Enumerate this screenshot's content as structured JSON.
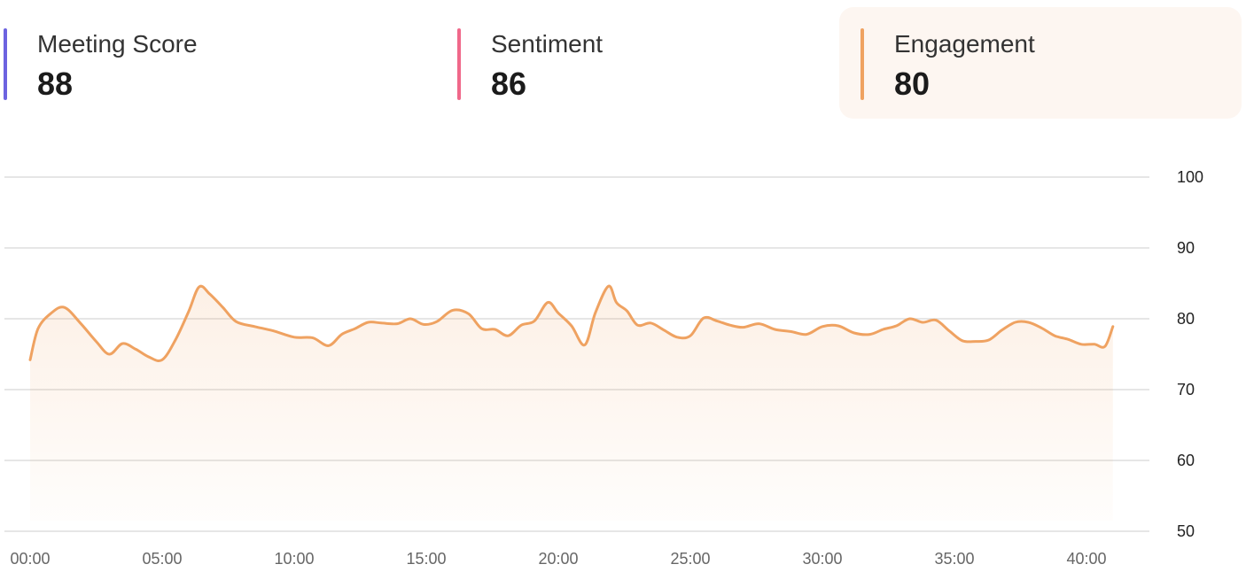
{
  "metrics": [
    {
      "label": "Meeting Score",
      "value": "88",
      "color": "#6c63e0",
      "active": false
    },
    {
      "label": "Sentiment",
      "value": "86",
      "color": "#f0688a",
      "active": false
    },
    {
      "label": "Engagement",
      "value": "80",
      "color": "#efa261",
      "active": true
    }
  ],
  "active_card_bg": "#fdf6f1",
  "chart_data": {
    "type": "area",
    "series": [
      {
        "x_minutes": [
          0.0,
          0.3,
          0.8,
          1.3,
          1.9,
          2.5,
          3.0,
          3.5,
          4.0,
          4.5,
          5.0,
          5.5,
          6.0,
          6.4,
          6.8,
          7.3,
          7.8,
          8.5,
          9.2,
          10.0,
          10.7,
          11.3,
          11.8,
          12.3,
          12.8,
          13.3,
          13.9,
          14.4,
          14.9,
          15.4,
          16.0,
          16.6,
          17.1,
          17.6,
          18.1,
          18.6,
          19.1,
          19.6,
          20.0,
          20.5,
          21.0,
          21.4,
          21.9,
          22.2,
          22.6,
          23.0,
          23.5,
          24.0,
          24.5,
          25.0,
          25.5,
          26.0,
          26.5,
          27.0,
          27.6,
          28.2,
          28.8,
          29.4,
          30.0,
          30.6,
          31.2,
          31.8,
          32.3,
          32.8,
          33.3,
          33.8,
          34.3,
          34.8,
          35.3,
          35.8,
          36.3,
          36.8,
          37.3,
          37.8,
          38.3,
          38.8,
          39.3,
          39.8,
          40.3,
          40.7,
          41.0
        ],
        "values": [
          74.2,
          78.6,
          80.8,
          81.6,
          79.4,
          76.8,
          75.0,
          76.5,
          75.7,
          74.6,
          74.2,
          77.0,
          81.0,
          84.5,
          83.5,
          81.6,
          79.6,
          78.9,
          78.3,
          77.4,
          77.3,
          76.2,
          77.8,
          78.6,
          79.5,
          79.4,
          79.3,
          80.0,
          79.2,
          79.6,
          81.2,
          80.7,
          78.6,
          78.5,
          77.6,
          79.1,
          79.7,
          82.3,
          80.8,
          79.0,
          76.3,
          80.8,
          84.6,
          82.3,
          81.1,
          79.1,
          79.4,
          78.4,
          77.4,
          77.6,
          80.1,
          79.7,
          79.1,
          78.8,
          79.3,
          78.5,
          78.2,
          77.8,
          78.9,
          79.0,
          78.0,
          77.8,
          78.5,
          79.0,
          80.0,
          79.5,
          79.8,
          78.3,
          76.9,
          76.8,
          77.0,
          78.4,
          79.5,
          79.5,
          78.7,
          77.6,
          77.1,
          76.4,
          76.4,
          76.1,
          78.9
        ]
      }
    ],
    "x_tick_labels": [
      "00:00",
      "05:00",
      "10:00",
      "15:00",
      "20:00",
      "25:00",
      "30:00",
      "35:00",
      "40:00"
    ],
    "y_ticks": [
      50,
      60,
      70,
      80,
      90,
      100
    ],
    "xlim_minutes": [
      0,
      41
    ],
    "ylim": [
      50,
      100
    ],
    "line_color": "#efa261",
    "grid": true
  }
}
